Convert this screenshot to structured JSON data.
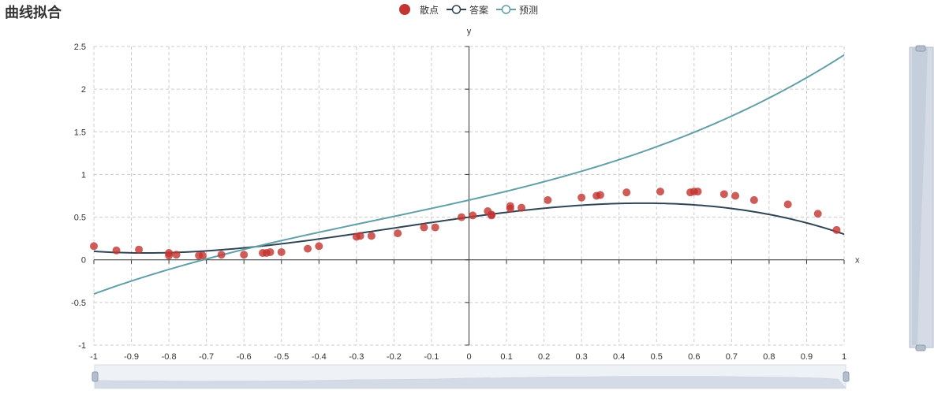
{
  "title": "曲线拟合",
  "legend": {
    "scatter_label": "散点",
    "answer_label": "答案",
    "predict_label": "预测"
  },
  "colors": {
    "scatter": "#c23531",
    "answer": "#2f4554",
    "predict": "#61a0a8",
    "grid": "#cccccc",
    "axis": "#333333",
    "zoom_fill": "#d4dbe6",
    "zoom_border": "#b3bdcc"
  },
  "chart_data": {
    "type": "scatter",
    "title": "曲线拟合",
    "xlabel": "x",
    "ylabel": "y",
    "xlim": [
      -1,
      1
    ],
    "ylim": [
      -1,
      2.5
    ],
    "xticks": [
      -1,
      -0.9,
      -0.8,
      -0.7,
      -0.6,
      -0.5,
      -0.4,
      -0.3,
      -0.2,
      -0.1,
      0,
      0.1,
      0.2,
      0.3,
      0.4,
      0.5,
      0.6,
      0.7,
      0.8,
      0.9,
      1
    ],
    "yticks": [
      -1,
      -0.5,
      0,
      0.5,
      1,
      1.5,
      2,
      2.5
    ],
    "grid": true,
    "legend_position": "top-center",
    "series": [
      {
        "name": "散点",
        "type": "scatter",
        "points": [
          [
            -1.0,
            0.16
          ],
          [
            -0.94,
            0.11
          ],
          [
            -0.88,
            0.12
          ],
          [
            -0.8,
            0.08
          ],
          [
            -0.8,
            0.05
          ],
          [
            -0.78,
            0.06
          ],
          [
            -0.72,
            0.05
          ],
          [
            -0.71,
            0.05
          ],
          [
            -0.66,
            0.06
          ],
          [
            -0.6,
            0.06
          ],
          [
            -0.55,
            0.08
          ],
          [
            -0.54,
            0.08
          ],
          [
            -0.53,
            0.09
          ],
          [
            -0.5,
            0.09
          ],
          [
            -0.43,
            0.13
          ],
          [
            -0.4,
            0.16
          ],
          [
            -0.3,
            0.27
          ],
          [
            -0.29,
            0.28
          ],
          [
            -0.26,
            0.28
          ],
          [
            -0.19,
            0.31
          ],
          [
            -0.12,
            0.38
          ],
          [
            -0.09,
            0.38
          ],
          [
            -0.02,
            0.5
          ],
          [
            0.01,
            0.52
          ],
          [
            0.05,
            0.57
          ],
          [
            0.06,
            0.53
          ],
          [
            0.06,
            0.52
          ],
          [
            0.11,
            0.6
          ],
          [
            0.11,
            0.63
          ],
          [
            0.14,
            0.61
          ],
          [
            0.21,
            0.7
          ],
          [
            0.3,
            0.73
          ],
          [
            0.34,
            0.75
          ],
          [
            0.35,
            0.76
          ],
          [
            0.42,
            0.79
          ],
          [
            0.51,
            0.8
          ],
          [
            0.59,
            0.79
          ],
          [
            0.6,
            0.8
          ],
          [
            0.61,
            0.8
          ],
          [
            0.68,
            0.77
          ],
          [
            0.71,
            0.75
          ],
          [
            0.76,
            0.7
          ],
          [
            0.85,
            0.65
          ],
          [
            0.93,
            0.54
          ],
          [
            0.98,
            0.35
          ]
        ]
      },
      {
        "name": "答案",
        "type": "line",
        "coefficients_desc": [
          -0.5,
          -0.3,
          0.6,
          0.5
        ],
        "range": [
          -1,
          1
        ]
      },
      {
        "name": "预测",
        "type": "line",
        "coefficients_desc": [
          0.4,
          0.3,
          1.0,
          0.7
        ],
        "range": [
          -1,
          1
        ]
      }
    ]
  }
}
